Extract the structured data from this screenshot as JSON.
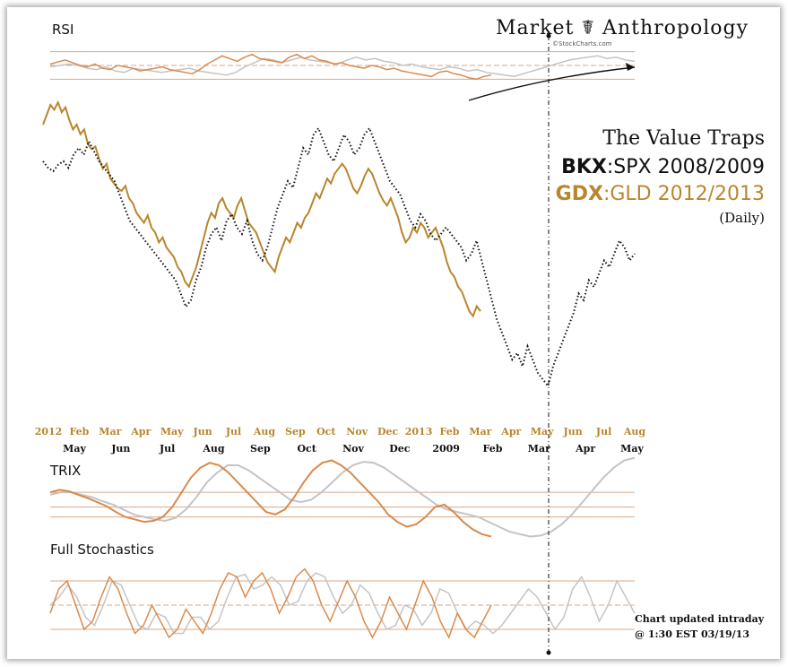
{
  "header": {
    "brand": "Market ☤ Anthropology",
    "stockcharts": "©StockCharts.com"
  },
  "title": {
    "line1": "The Value Traps",
    "line2_symbol": "BKX",
    "line2_rest": ":SPX 2008/2009",
    "line3_symbol": "GDX",
    "line3_rest": ":GLD 2012/2013",
    "line4": "(Daily)"
  },
  "panes": {
    "rsi": "RSI",
    "trix": "TRIX",
    "stoch": "Full Stochastics"
  },
  "note": {
    "line1": "Chart updated intraday",
    "line2": "@ 1:30 EST 03/19/13"
  },
  "colors": {
    "gold": "#b8862e",
    "orange": "#d98a4c",
    "black": "#111111",
    "gray": "#c4c4c4",
    "guide": "#d8a888"
  },
  "chart_data": {
    "type": "line",
    "x_axis_top_ticks": [
      "2012",
      "Feb",
      "Mar",
      "Apr",
      "May",
      "Jun",
      "Jul",
      "Aug",
      "Sep",
      "Oct",
      "Nov",
      "Dec",
      "2013",
      "Feb",
      "Mar",
      "Apr",
      "May",
      "Jun",
      "Jul",
      "Aug"
    ],
    "x_axis_bottom_ticks": [
      "May",
      "Jun",
      "Jul",
      "Aug",
      "Sep",
      "Oct",
      "Nov",
      "Dec",
      "2009",
      "Feb",
      "Mar",
      "Apr",
      "May"
    ],
    "series": [
      {
        "name": "GDX:GLD 2012/2013",
        "color": "#b8862e",
        "style": "solid",
        "values": [
          88,
          92,
          96,
          94,
          97,
          93,
          95,
          90,
          86,
          88,
          84,
          86,
          80,
          78,
          79,
          74,
          70,
          72,
          66,
          64,
          62,
          61,
          63,
          58,
          56,
          52,
          50,
          48,
          51,
          46,
          44,
          40,
          42,
          38,
          36,
          34,
          30,
          28,
          24,
          22,
          26,
          30,
          36,
          42,
          48,
          52,
          50,
          56,
          58,
          54,
          52,
          50,
          55,
          58,
          53,
          48,
          46,
          44,
          40,
          36,
          32,
          30,
          28,
          34,
          38,
          42,
          40,
          44,
          48,
          46,
          50,
          52,
          56,
          60,
          58,
          62,
          66,
          64,
          68,
          70,
          72,
          70,
          66,
          62,
          60,
          63,
          67,
          70,
          68,
          64,
          60,
          57,
          55,
          58,
          54,
          50,
          44,
          40,
          42,
          46,
          44,
          48,
          46,
          42,
          44,
          46,
          42,
          38,
          32,
          28,
          26,
          22,
          20,
          16,
          12,
          10,
          14,
          12
        ]
      },
      {
        "name": "BKX:SPX 2008/2009",
        "color": "#111111",
        "style": "dotted",
        "values": [
          70,
          68,
          67,
          69,
          70,
          68,
          72,
          74,
          72,
          76,
          73,
          70,
          68,
          66,
          64,
          60,
          56,
          52,
          50,
          48,
          46,
          44,
          42,
          40,
          38,
          36,
          34,
          30,
          26,
          28,
          34,
          38,
          44,
          48,
          50,
          46,
          52,
          54,
          50,
          48,
          52,
          46,
          42,
          40,
          44,
          50,
          56,
          60,
          64,
          62,
          68,
          74,
          72,
          78,
          80,
          76,
          72,
          70,
          74,
          78,
          76,
          72,
          74,
          78,
          80,
          76,
          72,
          68,
          64,
          62,
          60,
          56,
          52,
          50,
          54,
          52,
          48,
          46,
          48,
          50,
          48,
          46,
          44,
          40,
          42,
          46,
          40,
          34,
          28,
          22,
          18,
          14,
          10,
          12,
          8,
          14,
          10,
          6,
          4,
          2,
          8,
          12,
          16,
          20,
          24,
          30,
          28,
          34,
          32,
          36,
          40,
          38,
          42,
          46,
          44,
          40,
          42
        ]
      }
    ],
    "rsi": {
      "bands": [
        30,
        50,
        70
      ],
      "series": [
        {
          "name": "GDX:GLD 2012/2013",
          "color": "#d98a4c",
          "values": [
            52,
            55,
            58,
            54,
            50,
            48,
            52,
            46,
            44,
            50,
            48,
            46,
            42,
            44,
            46,
            48,
            44,
            42,
            40,
            38,
            44,
            52,
            58,
            64,
            60,
            56,
            62,
            66,
            60,
            58,
            56,
            54,
            62,
            66,
            60,
            64,
            58,
            56,
            52,
            54,
            50,
            48,
            46,
            50,
            48,
            44,
            46,
            42,
            40,
            38,
            36,
            34,
            40,
            42,
            38,
            36,
            32,
            30,
            34,
            36
          ]
        },
        {
          "name": "BKX:SPX 2008/2009",
          "color": "#c4c4c4",
          "values": [
            48,
            50,
            52,
            50,
            46,
            44,
            48,
            42,
            40,
            46,
            44,
            42,
            40,
            42,
            44,
            46,
            42,
            40,
            38,
            36,
            40,
            48,
            54,
            60,
            58,
            54,
            58,
            62,
            58,
            56,
            54,
            52,
            58,
            62,
            58,
            60,
            56,
            54,
            50,
            52,
            48,
            46,
            44,
            48,
            46,
            42,
            44,
            40,
            38,
            36,
            34,
            38,
            42,
            46,
            50,
            54,
            58,
            60,
            62,
            64,
            60,
            62,
            58,
            56
          ]
        }
      ]
    },
    "trix": {
      "series": [
        {
          "name": "GDX:GLD 2012/2013",
          "color": "#d98a4c",
          "values": [
            0.3,
            0.35,
            0.32,
            0.25,
            0.18,
            0.1,
            0.02,
            -0.1,
            -0.2,
            -0.25,
            -0.3,
            -0.28,
            -0.2,
            0.0,
            0.3,
            0.6,
            0.8,
            0.9,
            0.85,
            0.7,
            0.5,
            0.3,
            0.1,
            -0.1,
            -0.15,
            -0.05,
            0.2,
            0.5,
            0.75,
            0.9,
            0.95,
            0.85,
            0.7,
            0.5,
            0.3,
            0.1,
            -0.15,
            -0.3,
            -0.4,
            -0.35,
            -0.2,
            0.0,
            0.05,
            -0.1,
            -0.3,
            -0.45,
            -0.55,
            -0.6
          ]
        },
        {
          "name": "BKX:SPX 2008/2009",
          "color": "#c4c4c4",
          "values": [
            0.25,
            0.3,
            0.3,
            0.25,
            0.2,
            0.12,
            0.05,
            -0.05,
            -0.15,
            -0.2,
            -0.25,
            -0.28,
            -0.22,
            -0.05,
            0.2,
            0.5,
            0.7,
            0.85,
            0.85,
            0.75,
            0.6,
            0.45,
            0.3,
            0.15,
            0.1,
            0.15,
            0.3,
            0.5,
            0.7,
            0.85,
            0.92,
            0.9,
            0.8,
            0.65,
            0.5,
            0.35,
            0.2,
            0.05,
            -0.05,
            -0.1,
            -0.15,
            -0.2,
            -0.3,
            -0.4,
            -0.5,
            -0.55,
            -0.6,
            -0.58,
            -0.5,
            -0.35,
            -0.15,
            0.1,
            0.35,
            0.6,
            0.8,
            0.95,
            1.0
          ]
        }
      ]
    },
    "stochastics": {
      "bands": [
        20,
        50,
        80
      ],
      "series": [
        {
          "name": "GDX:GLD 2012/2013",
          "color": "#d98a4c",
          "values": [
            40,
            70,
            80,
            50,
            20,
            30,
            60,
            85,
            70,
            40,
            15,
            25,
            50,
            30,
            10,
            20,
            45,
            30,
            15,
            40,
            70,
            90,
            85,
            60,
            80,
            90,
            70,
            40,
            60,
            85,
            95,
            80,
            50,
            30,
            55,
            80,
            60,
            30,
            10,
            30,
            60,
            40,
            20,
            50,
            80,
            60,
            30,
            10,
            40,
            20,
            10,
            30,
            50
          ]
        },
        {
          "name": "BKX:SPX 2008/2009",
          "color": "#c4c4c4",
          "values": [
            50,
            60,
            75,
            60,
            35,
            25,
            50,
            80,
            75,
            50,
            25,
            20,
            40,
            35,
            15,
            15,
            35,
            35,
            20,
            30,
            60,
            85,
            88,
            70,
            75,
            85,
            75,
            50,
            55,
            80,
            90,
            85,
            60,
            40,
            50,
            75,
            65,
            40,
            20,
            25,
            50,
            45,
            25,
            40,
            70,
            65,
            40,
            20,
            30,
            25,
            15,
            25,
            40,
            55,
            70,
            60,
            40,
            20,
            35,
            70,
            85,
            60,
            30,
            50,
            80,
            60,
            40
          ]
        }
      ]
    }
  }
}
